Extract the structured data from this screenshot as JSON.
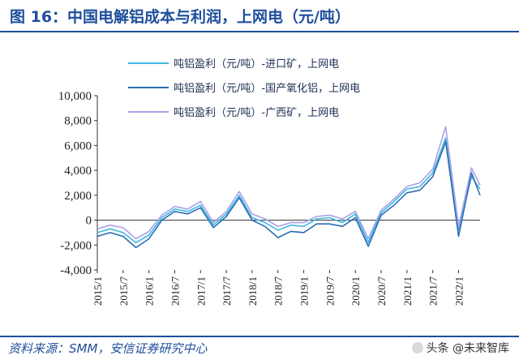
{
  "header": {
    "title": "图 16：中国电解铝成本与利润，上网电（元/吨）"
  },
  "footer": {
    "source": "资料来源：SMM，安信证券研究中心",
    "watermark": "头条 @未来智库"
  },
  "colors": {
    "brand": "#1f4e9c",
    "series1": "#3fb8e0",
    "series2": "#2a6db4",
    "series3": "#a8a2e8"
  },
  "chart_data": {
    "type": "line",
    "ylim": [
      -4000,
      10000
    ],
    "yticks": [
      10000,
      8000,
      6000,
      4000,
      2000,
      0,
      -2000,
      -4000
    ],
    "ytick_labels": [
      "10,000",
      "8,000",
      "6,000",
      "4,000",
      "2,000",
      "0",
      "-2,000",
      "-4,000"
    ],
    "xlim": [
      "2015-01",
      "2022-06"
    ],
    "xtick_labels": [
      "2015/1",
      "2015/7",
      "2016/1",
      "2016/7",
      "2017/1",
      "2017/7",
      "2018/1",
      "2018/7",
      "2019/1",
      "2019/7",
      "2020/1",
      "2020/7",
      "2021/1",
      "2021/7",
      "2022/1"
    ],
    "legend_position": "top",
    "x": [
      "2015-01",
      "2015-04",
      "2015-07",
      "2015-10",
      "2016-01",
      "2016-04",
      "2016-07",
      "2016-10",
      "2017-01",
      "2017-04",
      "2017-07",
      "2017-10",
      "2018-01",
      "2018-04",
      "2018-07",
      "2018-10",
      "2019-01",
      "2019-04",
      "2019-07",
      "2019-10",
      "2020-01",
      "2020-04",
      "2020-07",
      "2020-10",
      "2021-01",
      "2021-04",
      "2021-07",
      "2021-10",
      "2022-01",
      "2022-04",
      "2022-06"
    ],
    "series": [
      {
        "name": "吨铝盈利（元/吨）-进口矿，上网电",
        "values": [
          -1000,
          -700,
          -1000,
          -1800,
          -1200,
          200,
          900,
          700,
          1200,
          -400,
          500,
          2000,
          200,
          -200,
          -800,
          -400,
          -500,
          100,
          200,
          -200,
          500,
          -1800,
          600,
          1500,
          2500,
          2700,
          3800,
          6600,
          -800,
          3500,
          2500
        ]
      },
      {
        "name": "吨铝盈利（元/吨）-国产氧化铝，上网电",
        "values": [
          -1300,
          -1000,
          -1300,
          -2200,
          -1500,
          0,
          700,
          500,
          1000,
          -600,
          300,
          1800,
          0,
          -500,
          -1400,
          -900,
          -1000,
          -300,
          -300,
          -500,
          200,
          -2100,
          400,
          1200,
          2200,
          2400,
          3500,
          6300,
          -1300,
          3800,
          2000
        ]
      },
      {
        "name": "吨铝盈利（元/吨）-广西矿，上网电",
        "values": [
          -700,
          -400,
          -600,
          -1500,
          -900,
          400,
          1100,
          900,
          1500,
          -200,
          700,
          2300,
          500,
          100,
          -500,
          -200,
          -200,
          300,
          400,
          100,
          700,
          -1500,
          800,
          1700,
          2700,
          3000,
          4100,
          7500,
          -500,
          4200,
          2800
        ]
      }
    ]
  }
}
